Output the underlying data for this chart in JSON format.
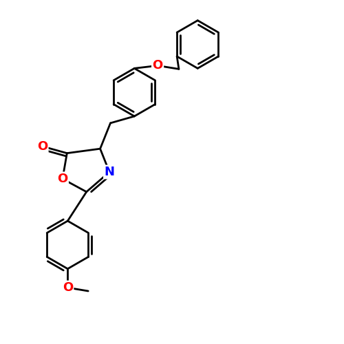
{
  "background_color": "#ffffff",
  "bond_color": "#000000",
  "bond_width": 2.0,
  "atom_colors": {
    "O": "#ff0000",
    "N": "#0000ff"
  },
  "figsize": [
    5.0,
    5.0
  ],
  "dpi": 100
}
